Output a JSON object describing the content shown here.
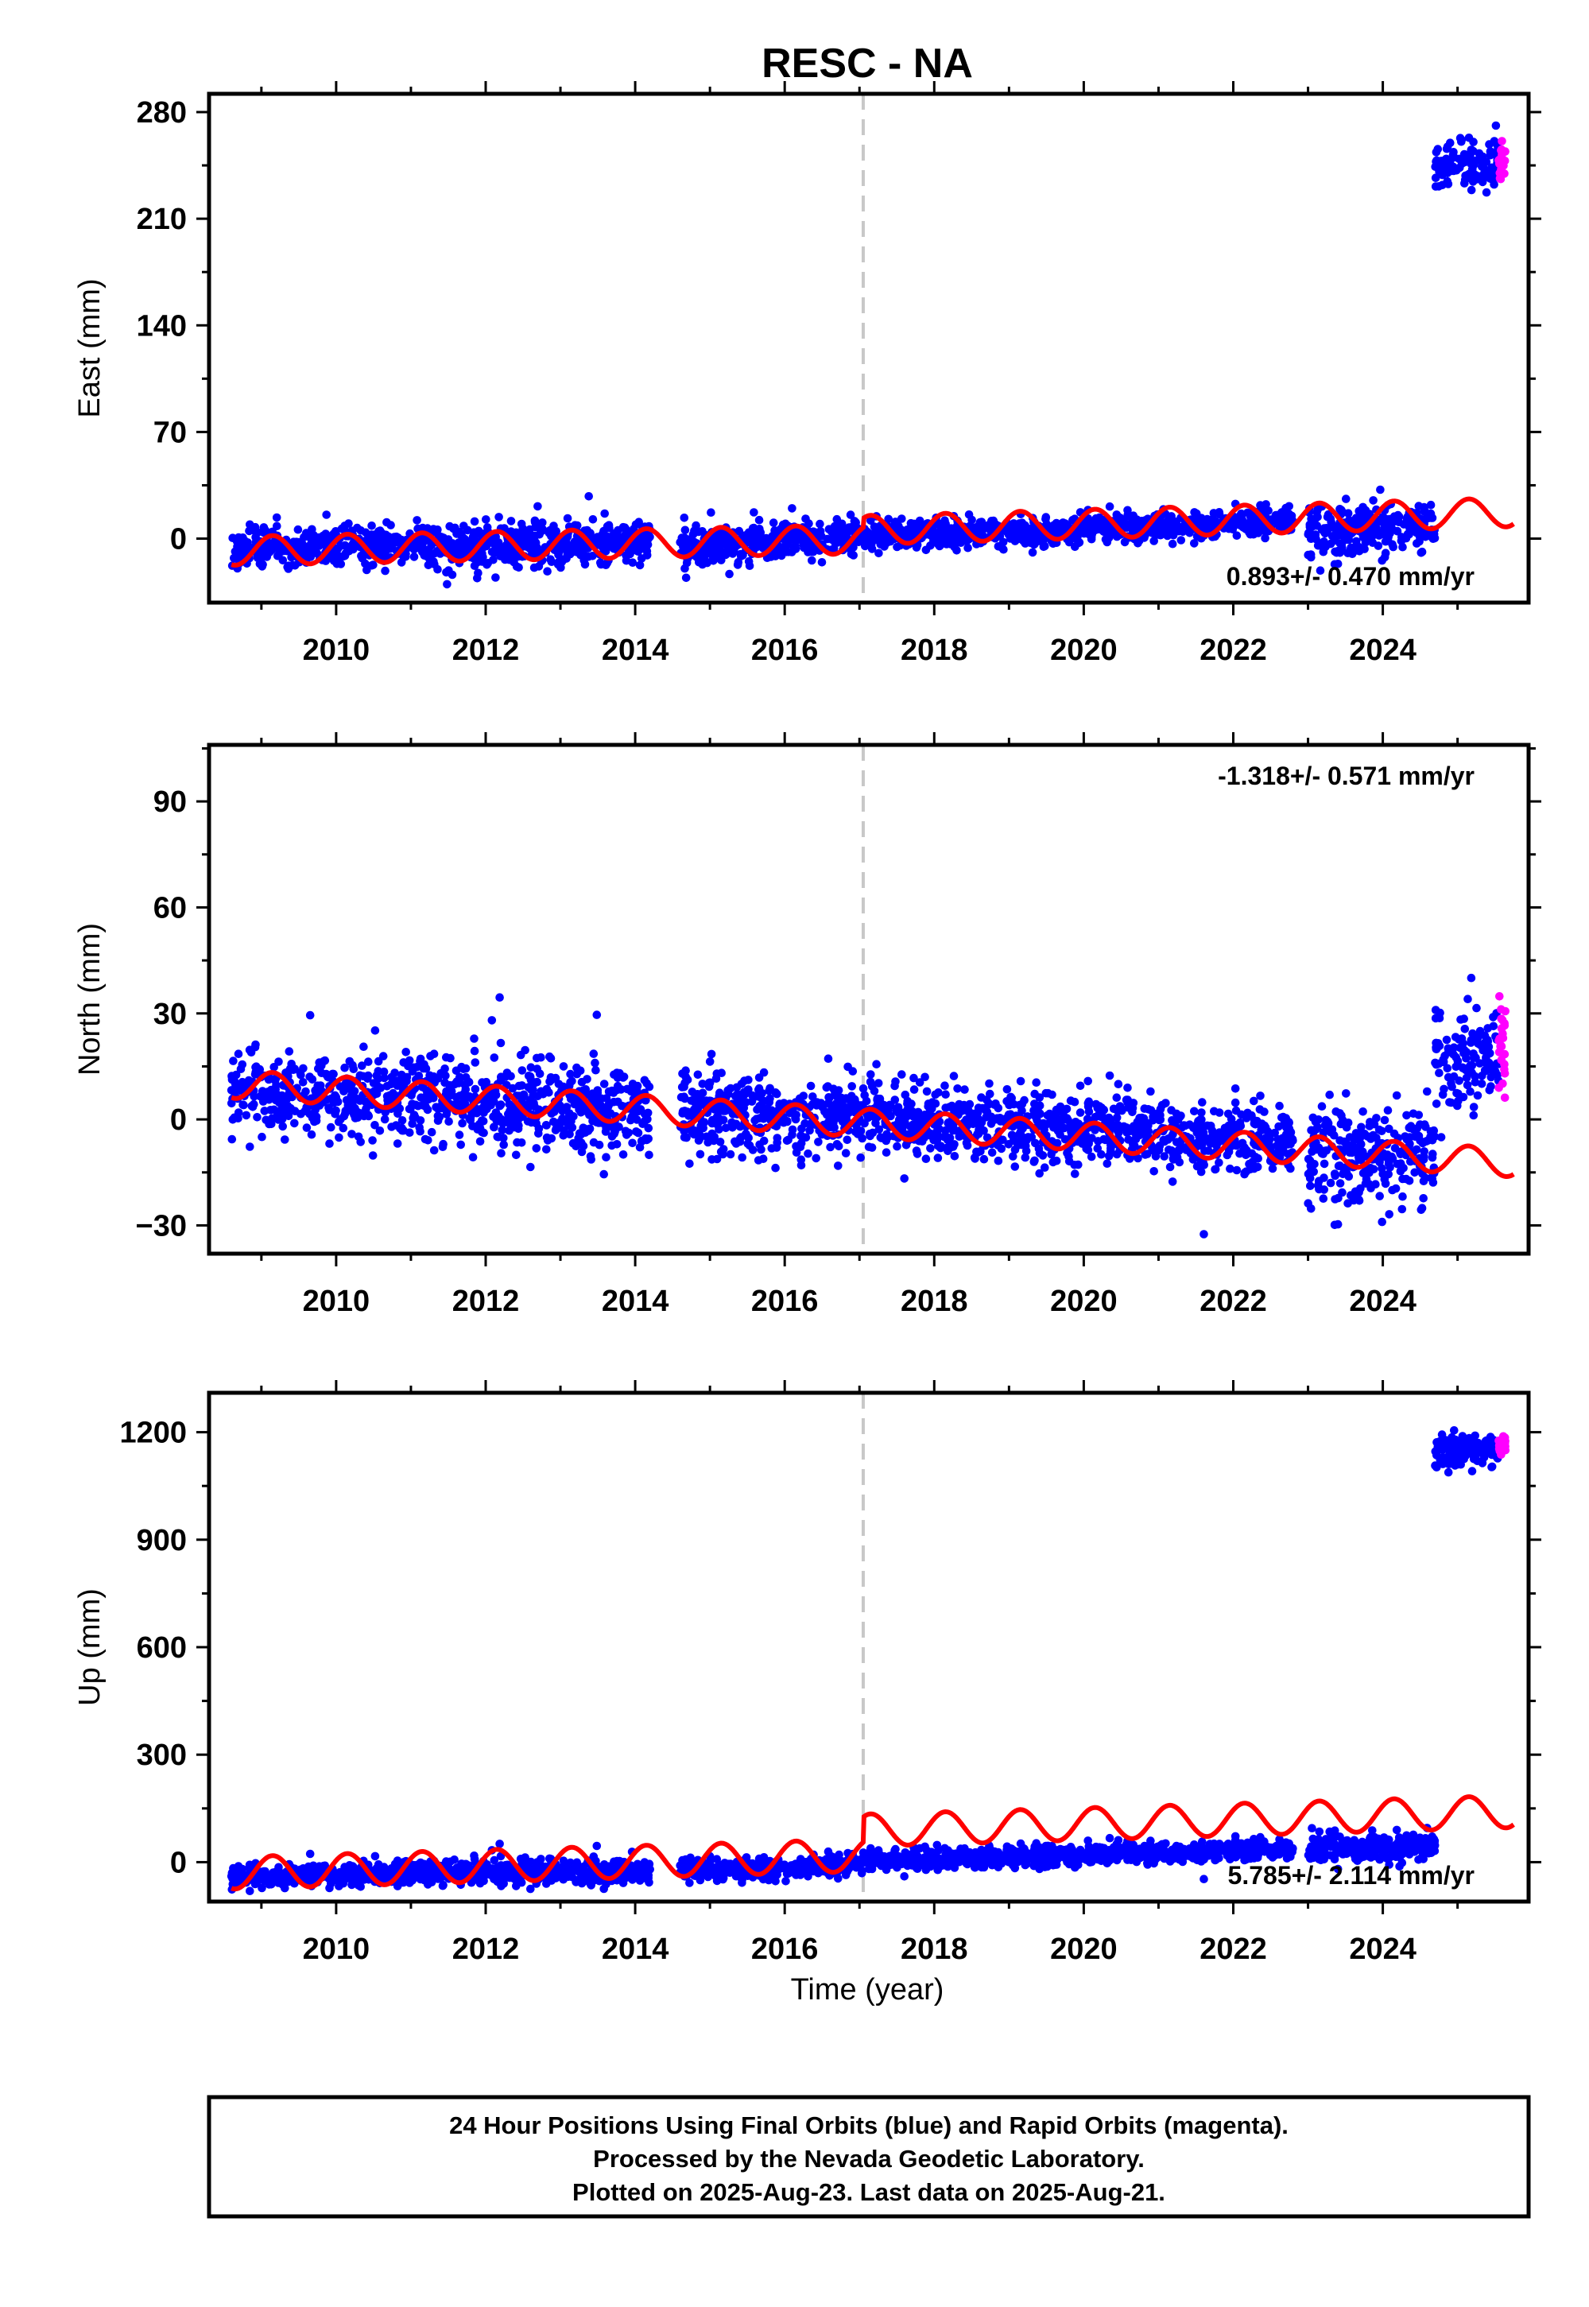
{
  "chart_data": {
    "type": "scatter",
    "title": "RESC - NA",
    "xlabel": "Time (year)",
    "x_ticks": [
      "2010",
      "2012",
      "2014",
      "2016",
      "2018",
      "2020",
      "2022",
      "2024"
    ],
    "xlim": [
      2008.3,
      2025.95
    ],
    "reference_line_year": 2017.05,
    "panels": [
      {
        "id": "east",
        "ylabel": "East (mm)",
        "ylim": [
          -42,
          292
        ],
        "y_ticks": [
          0,
          70,
          140,
          210,
          280
        ],
        "rate_text": "0.893+/- 0.470 mm/yr",
        "rate_position": "bottom-right",
        "segments": [
          {
            "start": 2008.6,
            "end": 2014.2,
            "center": -6,
            "drift": 0.6,
            "scatter": 6.5
          },
          {
            "start": 2014.6,
            "end": 2017.05,
            "center": -6,
            "drift": 3.2,
            "scatter": 6.0
          },
          {
            "start": 2017.05,
            "end": 2022.8,
            "center": 1,
            "drift": 1.8,
            "scatter": 4.5
          },
          {
            "start": 2023.0,
            "end": 2024.7,
            "center": 5,
            "drift": 2.0,
            "scatter": 8.0
          },
          {
            "start": 2024.7,
            "end": 2025.55,
            "center": 243,
            "drift": 0,
            "scatter": 8.5
          }
        ],
        "rapid": {
          "start": 2025.55,
          "end": 2025.64,
          "center": 248,
          "scatter": 6
        },
        "model": {
          "base": -8,
          "slope": 0.9,
          "amp": 9.5,
          "offset_2017": 6,
          "slope_after": 1.35
        }
      },
      {
        "id": "north",
        "ylabel": "North (mm)",
        "ylim": [
          -38,
          106
        ],
        "y_ticks": [
          -30,
          0,
          30,
          60,
          90
        ],
        "rate_text": "-1.318+/- 0.571 mm/yr",
        "rate_position": "top-right",
        "segments": [
          {
            "start": 2008.6,
            "end": 2014.2,
            "center": 8,
            "drift": -1.0,
            "scatter": 6.0
          },
          {
            "start": 2014.6,
            "end": 2017.05,
            "center": 3,
            "drift": -1.2,
            "scatter": 6.0
          },
          {
            "start": 2017.05,
            "end": 2022.8,
            "center": 1,
            "drift": -1.3,
            "scatter": 5.0
          },
          {
            "start": 2023.0,
            "end": 2024.7,
            "center": -10,
            "drift": -0.3,
            "scatter": 7.0
          },
          {
            "start": 2024.7,
            "end": 2025.55,
            "center": 18,
            "drift": 0,
            "scatter": 7.0
          }
        ],
        "rapid": {
          "start": 2025.55,
          "end": 2025.64,
          "center": 18,
          "scatter": 7
        },
        "model": {
          "base": 10,
          "slope": -1.3,
          "amp": 4,
          "offset_2017": 0,
          "slope_after": -1.3
        }
      },
      {
        "id": "up",
        "ylabel": "Up (mm)",
        "ylim": [
          -110,
          1310
        ],
        "y_ticks": [
          0,
          300,
          600,
          900,
          1200
        ],
        "rate_text": "5.785+/- 2.114 mm/yr",
        "rate_position": "bottom-right",
        "segments": [
          {
            "start": 2008.6,
            "end": 2014.2,
            "center": -40,
            "drift": 3.0,
            "scatter": 16
          },
          {
            "start": 2014.6,
            "end": 2017.05,
            "center": -20,
            "drift": 4.0,
            "scatter": 15
          },
          {
            "start": 2017.05,
            "end": 2022.8,
            "center": 5,
            "drift": 5.5,
            "scatter": 14
          },
          {
            "start": 2023.0,
            "end": 2024.7,
            "center": 35,
            "drift": 5.0,
            "scatter": 20
          },
          {
            "start": 2024.7,
            "end": 2025.55,
            "center": 1150,
            "drift": 0,
            "scatter": 22
          }
        ],
        "rapid": {
          "start": 2025.55,
          "end": 2025.64,
          "center": 1165,
          "scatter": 15
        },
        "model": {
          "base": -30,
          "slope": 5.8,
          "amp": 45,
          "offset_2017": 70,
          "slope_after": 6.0
        }
      }
    ],
    "series": [
      {
        "name": "Final Orbits",
        "color": "#0000ff"
      },
      {
        "name": "Rapid Orbits",
        "color": "#ff00ff"
      },
      {
        "name": "Model",
        "color": "#ff0000"
      }
    ],
    "grid": false,
    "legend": "none"
  },
  "footer_lines": [
    "24 Hour Positions Using Final Orbits (blue) and Rapid Orbits (magenta).",
    "Processed by the Nevada Geodetic Laboratory.",
    "Plotted on 2025-Aug-23. Last data on 2025-Aug-21."
  ]
}
